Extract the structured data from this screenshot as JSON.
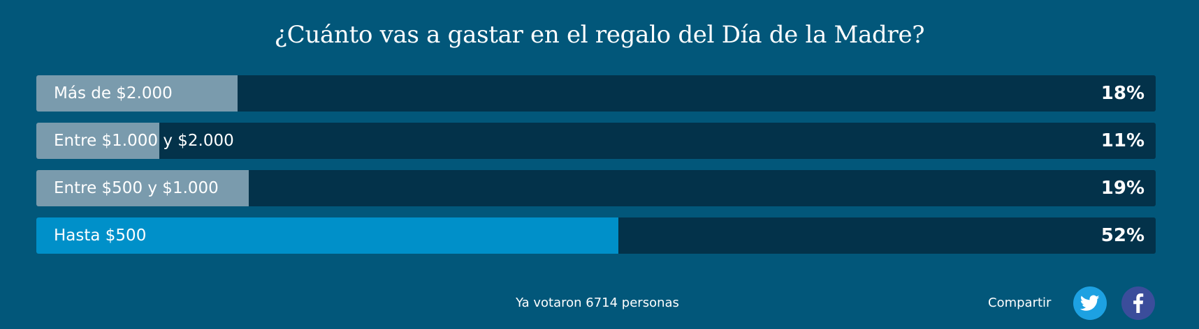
{
  "poll": {
    "question": "¿Cuánto vas a gastar en el regalo del Día de la Madre?",
    "options": [
      {
        "label": "Más de $2.000",
        "percent_label": "18%",
        "share": 0.18,
        "selected": false
      },
      {
        "label": "Entre $1.000 y $2.000",
        "percent_label": "11%",
        "share": 0.11,
        "selected": false
      },
      {
        "label": "Entre $500 y $1.000",
        "percent_label": "19%",
        "share": 0.19,
        "selected": false
      },
      {
        "label": "Hasta $500",
        "percent_label": "52%",
        "share": 0.52,
        "selected": true
      }
    ],
    "votes_text": "Ya votaron 6714 personas",
    "share_label": "Compartir",
    "share_icons": [
      "twitter-icon",
      "facebook-icon"
    ]
  },
  "colors": {
    "background": "#02577a",
    "bar_track": "#03324a",
    "bar_fill": "#7a9bad",
    "bar_fill_selected": "#0090c9",
    "twitter": "#1da1e2",
    "facebook": "#3b4d9b"
  }
}
